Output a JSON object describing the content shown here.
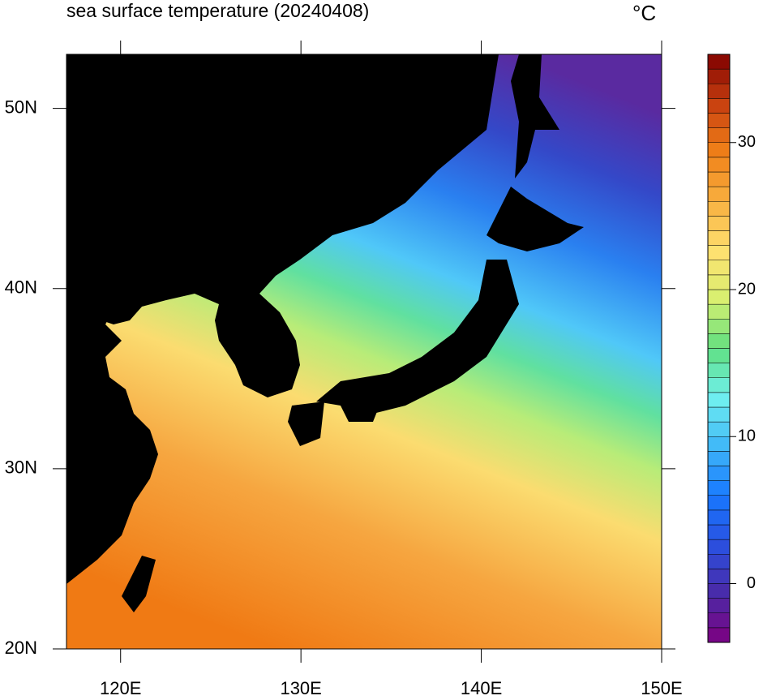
{
  "chart_data": {
    "type": "map",
    "title": "sea surface temperature (20240408)",
    "unit": "°C",
    "xlim": [
      117,
      150
    ],
    "xticks": [
      {
        "value": 120,
        "label": "120E"
      },
      {
        "value": 130,
        "label": "130E"
      },
      {
        "value": 140,
        "label": "140E"
      },
      {
        "value": 150,
        "label": "150E"
      }
    ],
    "ylim": [
      20,
      53
    ],
    "yticks": [
      {
        "value": 20,
        "label": "20N"
      },
      {
        "value": 30,
        "label": "30N"
      },
      {
        "value": 40,
        "label": "40N"
      },
      {
        "value": 50,
        "label": "50N"
      }
    ],
    "colorbar": {
      "lim": [
        -4,
        36
      ],
      "ticks": [
        0,
        10,
        20,
        30
      ],
      "step": 1,
      "colors": [
        "#7e0080",
        "#4a2aa8",
        "#2a50e0",
        "#1878ff",
        "#40b8f8",
        "#70f0f0",
        "#60e080",
        "#d8f070",
        "#ffe070",
        "#f8b040",
        "#f08018",
        "#c84010",
        "#800000"
      ]
    }
  }
}
